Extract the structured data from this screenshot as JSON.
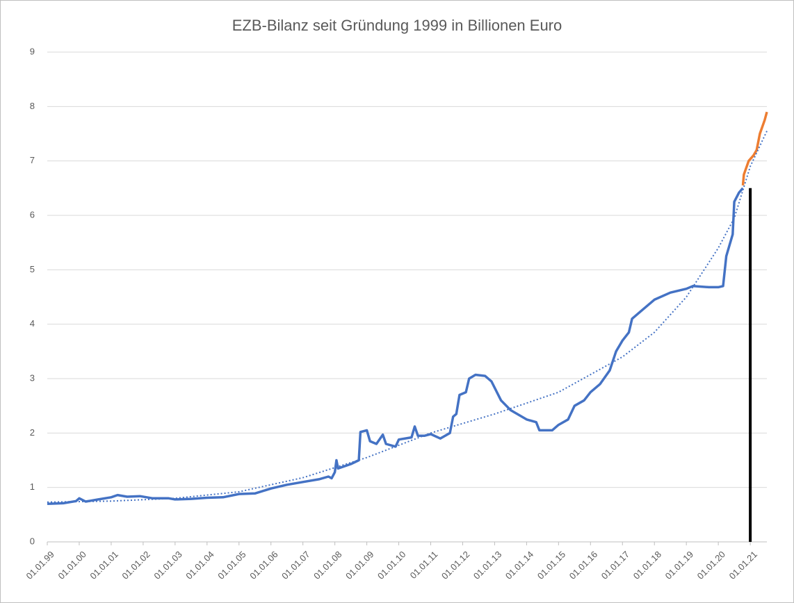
{
  "chart_data": {
    "type": "line",
    "title": "EZB-Bilanz seit Gründung 1999 in Billionen Euro",
    "xlim": [
      1999,
      2021.52
    ],
    "ylim": [
      0,
      9
    ],
    "yticks": [
      0,
      1,
      2,
      3,
      4,
      5,
      6,
      7,
      8,
      9
    ],
    "xticks": [
      {
        "value": 1999,
        "label": "01.01.99"
      },
      {
        "value": 2000,
        "label": "01.01.00"
      },
      {
        "value": 2001,
        "label": "01.01.01"
      },
      {
        "value": 2002,
        "label": "01.01.02"
      },
      {
        "value": 2003,
        "label": "01.01.03"
      },
      {
        "value": 2004,
        "label": "01.01.04"
      },
      {
        "value": 2005,
        "label": "01.01.05"
      },
      {
        "value": 2006,
        "label": "01.01.06"
      },
      {
        "value": 2007,
        "label": "01.01.07"
      },
      {
        "value": 2008,
        "label": "01.01.08"
      },
      {
        "value": 2009,
        "label": "01.01.09"
      },
      {
        "value": 2010,
        "label": "01.01.10"
      },
      {
        "value": 2011,
        "label": "01.01.11"
      },
      {
        "value": 2012,
        "label": "01.01.12"
      },
      {
        "value": 2013,
        "label": "01.01.13"
      },
      {
        "value": 2014,
        "label": "01.01.14"
      },
      {
        "value": 2015,
        "label": "01.01.15"
      },
      {
        "value": 2016,
        "label": "01.01.16"
      },
      {
        "value": 2017,
        "label": "01.01.17"
      },
      {
        "value": 2018,
        "label": "01.01.18"
      },
      {
        "value": 2019,
        "label": "01.01.19"
      },
      {
        "value": 2020,
        "label": "01.01.20"
      },
      {
        "value": 2021,
        "label": "01.01.21"
      }
    ],
    "grid": true,
    "series": [
      {
        "color": "#4472c4",
        "style": "solid",
        "x": [
          1999.0,
          1999.5,
          1999.9,
          2000.0,
          2000.2,
          2000.6,
          2001.0,
          2001.2,
          2001.5,
          2001.9,
          2002.3,
          2002.8,
          2003.0,
          2003.5,
          2004.0,
          2004.5,
          2005.0,
          2005.5,
          2006.0,
          2006.5,
          2007.0,
          2007.5,
          2007.8,
          2007.9,
          2008.0,
          2008.05,
          2008.1,
          2008.5,
          2008.75,
          2008.8,
          2009.0,
          2009.1,
          2009.3,
          2009.5,
          2009.6,
          2009.9,
          2010.0,
          2010.4,
          2010.5,
          2010.6,
          2010.8,
          2011.0,
          2011.3,
          2011.6,
          2011.7,
          2011.8,
          2011.9,
          2012.1,
          2012.2,
          2012.4,
          2012.7,
          2012.9,
          2013.2,
          2013.5,
          2014.0,
          2014.3,
          2014.4,
          2014.8,
          2015.0,
          2015.3,
          2015.5,
          2015.8,
          2016.0,
          2016.3,
          2016.6,
          2016.8,
          2017.0,
          2017.2,
          2017.3,
          2017.6,
          2018.0,
          2018.5,
          2019.0,
          2019.2,
          2019.7,
          2020.0,
          2020.15,
          2020.25,
          2020.45,
          2020.5,
          2020.65,
          2020.77
        ],
        "values": [
          0.7,
          0.71,
          0.75,
          0.8,
          0.74,
          0.78,
          0.82,
          0.86,
          0.83,
          0.84,
          0.8,
          0.8,
          0.78,
          0.79,
          0.81,
          0.82,
          0.88,
          0.89,
          0.98,
          1.05,
          1.1,
          1.15,
          1.2,
          1.17,
          1.28,
          1.5,
          1.35,
          1.43,
          1.5,
          2.02,
          2.05,
          1.85,
          1.8,
          1.97,
          1.8,
          1.75,
          1.88,
          1.92,
          2.12,
          1.95,
          1.95,
          1.98,
          1.9,
          2.0,
          2.3,
          2.35,
          2.7,
          2.75,
          3.0,
          3.07,
          3.05,
          2.95,
          2.6,
          2.42,
          2.25,
          2.2,
          2.05,
          2.05,
          2.15,
          2.25,
          2.5,
          2.6,
          2.75,
          2.9,
          3.15,
          3.5,
          3.7,
          3.85,
          4.1,
          4.25,
          4.45,
          4.58,
          4.65,
          4.7,
          4.68,
          4.68,
          4.7,
          5.25,
          5.65,
          6.25,
          6.42,
          6.5
        ]
      },
      {
        "color": "#ed7d31",
        "style": "solid",
        "x": [
          2020.77,
          2020.8,
          2020.95,
          2021.1,
          2021.2,
          2021.3,
          2021.45,
          2021.52
        ],
        "values": [
          6.55,
          6.75,
          7.0,
          7.1,
          7.2,
          7.5,
          7.75,
          7.9
        ]
      },
      {
        "color": "#4472c4",
        "style": "dotted",
        "x": [
          1999,
          2001,
          2003,
          2005,
          2007,
          2009,
          2011,
          2013,
          2015,
          2017,
          2018,
          2019,
          2020,
          2020.5,
          2021,
          2021.52
        ],
        "values": [
          0.73,
          0.75,
          0.8,
          0.92,
          1.18,
          1.55,
          2.0,
          2.35,
          2.75,
          3.4,
          3.85,
          4.5,
          5.4,
          5.95,
          6.9,
          7.55
        ]
      },
      {
        "color": "#000000",
        "style": "solid",
        "x": [
          2021.0,
          2021.0
        ],
        "values": [
          0,
          6.5
        ]
      }
    ]
  }
}
